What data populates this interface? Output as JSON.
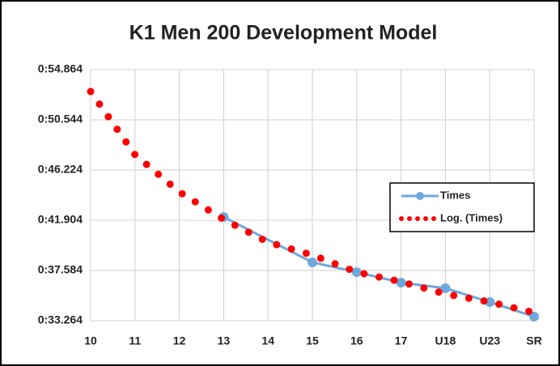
{
  "chart_data": {
    "type": "line",
    "title": "K1 Men 200 Development Model",
    "categories": [
      "10",
      "11",
      "12",
      "13",
      "14",
      "15",
      "16",
      "17",
      "U18",
      "U23",
      "SR"
    ],
    "series": [
      {
        "name": "Times",
        "color": "#6fa8dc",
        "style": "line-markers",
        "values": [
          null,
          null,
          null,
          42.18,
          null,
          38.28,
          37.44,
          36.54,
          36.05,
          34.87,
          33.61
        ]
      },
      {
        "name": "Log. (Times)",
        "color": "#ff0000",
        "style": "dotted",
        "values": [
          52.98,
          47.55,
          44.34,
          41.97,
          40.02,
          38.91,
          37.44,
          36.61,
          35.56,
          34.87,
          33.96
        ]
      }
    ],
    "ylim": [
      33.264,
      54.864
    ],
    "yticks": [
      {
        "value": 33.264,
        "label": "0:33.264"
      },
      {
        "value": 37.584,
        "label": "0:37.584"
      },
      {
        "value": 41.904,
        "label": "0:41.904"
      },
      {
        "value": 46.224,
        "label": "0:46.224"
      },
      {
        "value": 50.544,
        "label": "0:50.544"
      },
      {
        "value": 54.864,
        "label": "0:54.864"
      }
    ],
    "grid": true,
    "legend": "right"
  }
}
